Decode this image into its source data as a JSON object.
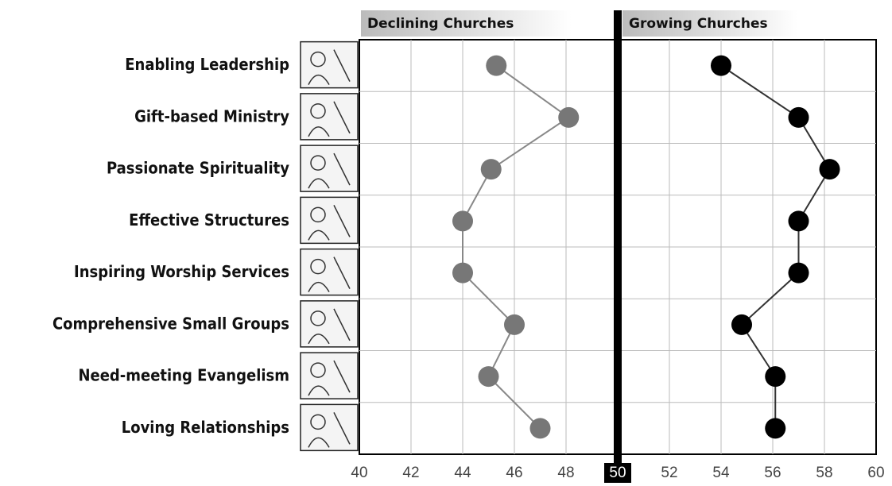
{
  "chart_data": {
    "type": "dot",
    "categories": [
      "Enabling Leadership",
      "Gift-based Ministry",
      "Passionate Spirituality",
      "Effective Structures",
      "Inspiring Worship Services",
      "Comprehensive Small Groups",
      "Need-meeting Evangelism",
      "Loving Relationships"
    ],
    "series": [
      {
        "name": "Declining Churches",
        "color": "#777777",
        "values": [
          45.3,
          48.1,
          45.1,
          44.0,
          44.0,
          46.0,
          45.0,
          47.0
        ]
      },
      {
        "name": "Growing Churches",
        "color": "#000000",
        "values": [
          54.0,
          57.0,
          58.2,
          57.0,
          57.0,
          54.8,
          56.1,
          56.1
        ]
      }
    ],
    "xlim": [
      40,
      60
    ],
    "xticks": [
      40,
      42,
      44,
      46,
      48,
      50,
      52,
      54,
      56,
      58,
      60
    ],
    "grid": true
  }
}
